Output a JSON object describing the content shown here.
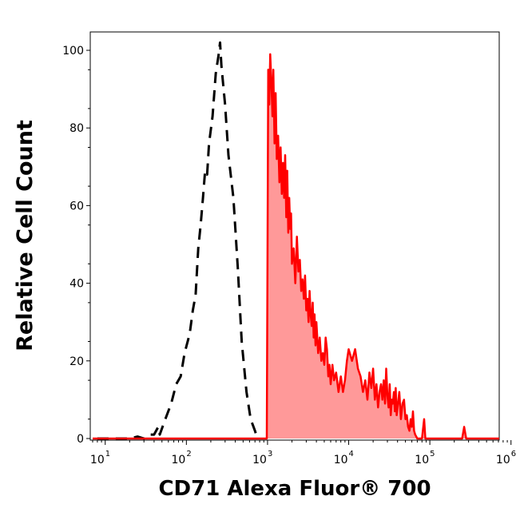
{
  "chart_data": {
    "type": "area",
    "xlabel": "CD71 Alexa Fluor® 700",
    "ylabel": "Relative Cell Count",
    "x_scale": "log",
    "xlim": [
      7,
      1200000
    ],
    "ylim": [
      0,
      105
    ],
    "x_ticks": [
      {
        "value": 10,
        "base": "10",
        "exp": "1"
      },
      {
        "value": 100,
        "base": "10",
        "exp": "2"
      },
      {
        "value": 1000,
        "base": "10",
        "exp": "3"
      },
      {
        "value": 10000,
        "base": "10",
        "exp": "4"
      },
      {
        "value": 100000,
        "base": "10",
        "exp": "5"
      },
      {
        "value": 1000000,
        "base": "10",
        "exp": "6"
      }
    ],
    "y_ticks": [
      0,
      20,
      40,
      60,
      80,
      100
    ],
    "y_tick_labels": [
      "0",
      "20",
      "40",
      "60",
      "80",
      "100"
    ],
    "series": [
      {
        "style": "dashed",
        "color": "#000000",
        "fill": "none",
        "points": [
          [
            8,
            0
          ],
          [
            15,
            0
          ],
          [
            20,
            0
          ],
          [
            25,
            0.5
          ],
          [
            30,
            0
          ],
          [
            35,
            1
          ],
          [
            40,
            1
          ],
          [
            45,
            3
          ],
          [
            47,
            1
          ],
          [
            55,
            5
          ],
          [
            65,
            9
          ],
          [
            75,
            14
          ],
          [
            85,
            16
          ],
          [
            95,
            22
          ],
          [
            110,
            27
          ],
          [
            120,
            33
          ],
          [
            130,
            37
          ],
          [
            140,
            49
          ],
          [
            150,
            55
          ],
          [
            160,
            62
          ],
          [
            170,
            69
          ],
          [
            180,
            68
          ],
          [
            190,
            76
          ],
          [
            210,
            83
          ],
          [
            230,
            94
          ],
          [
            250,
            99
          ],
          [
            260,
            102
          ],
          [
            270,
            96
          ],
          [
            300,
            86
          ],
          [
            330,
            73
          ],
          [
            380,
            62
          ],
          [
            430,
            44
          ],
          [
            480,
            25
          ],
          [
            550,
            12
          ],
          [
            620,
            5
          ],
          [
            700,
            2
          ],
          [
            750,
            0
          ]
        ]
      },
      {
        "style": "solid",
        "color": "#ff0000",
        "fill": "#ff9999",
        "points": [
          [
            7,
            0
          ],
          [
            980,
            0
          ],
          [
            1000,
            46
          ],
          [
            1020,
            95
          ],
          [
            1050,
            86
          ],
          [
            1080,
            99
          ],
          [
            1120,
            91
          ],
          [
            1150,
            83
          ],
          [
            1180,
            95
          ],
          [
            1220,
            76
          ],
          [
            1260,
            89
          ],
          [
            1300,
            72
          ],
          [
            1350,
            78
          ],
          [
            1400,
            66
          ],
          [
            1450,
            75
          ],
          [
            1500,
            63
          ],
          [
            1550,
            71
          ],
          [
            1600,
            62
          ],
          [
            1650,
            73
          ],
          [
            1700,
            57
          ],
          [
            1750,
            69
          ],
          [
            1800,
            53
          ],
          [
            1850,
            62
          ],
          [
            1900,
            54
          ],
          [
            1950,
            58
          ],
          [
            2000,
            45
          ],
          [
            2100,
            49
          ],
          [
            2200,
            40
          ],
          [
            2300,
            52
          ],
          [
            2400,
            43
          ],
          [
            2500,
            46
          ],
          [
            2600,
            38
          ],
          [
            2700,
            41
          ],
          [
            2800,
            36
          ],
          [
            2900,
            42
          ],
          [
            3000,
            33
          ],
          [
            3100,
            36
          ],
          [
            3200,
            30
          ],
          [
            3300,
            38
          ],
          [
            3400,
            32
          ],
          [
            3500,
            29
          ],
          [
            3600,
            35
          ],
          [
            3700,
            26
          ],
          [
            3800,
            32
          ],
          [
            3900,
            24
          ],
          [
            4000,
            30
          ],
          [
            4200,
            22
          ],
          [
            4400,
            26
          ],
          [
            4600,
            20
          ],
          [
            4800,
            22
          ],
          [
            5000,
            19
          ],
          [
            5200,
            26
          ],
          [
            5400,
            23
          ],
          [
            5600,
            16
          ],
          [
            5800,
            19
          ],
          [
            6000,
            14
          ],
          [
            6300,
            19
          ],
          [
            6600,
            15
          ],
          [
            7000,
            17
          ],
          [
            7500,
            12
          ],
          [
            8000,
            16
          ],
          [
            8500,
            12
          ],
          [
            9000,
            15
          ],
          [
            9500,
            20
          ],
          [
            10000,
            23
          ],
          [
            11000,
            20
          ],
          [
            12000,
            23
          ],
          [
            13000,
            18
          ],
          [
            14000,
            16
          ],
          [
            15000,
            12
          ],
          [
            16000,
            15
          ],
          [
            17000,
            10
          ],
          [
            18000,
            17
          ],
          [
            19000,
            13
          ],
          [
            20000,
            18
          ],
          [
            21000,
            10
          ],
          [
            22000,
            14
          ],
          [
            23000,
            8
          ],
          [
            24000,
            12
          ],
          [
            25000,
            14
          ],
          [
            26000,
            10
          ],
          [
            27000,
            15
          ],
          [
            28000,
            9
          ],
          [
            29000,
            18
          ],
          [
            30000,
            11
          ],
          [
            31000,
            8
          ],
          [
            32000,
            14
          ],
          [
            33000,
            6
          ],
          [
            34000,
            10
          ],
          [
            35000,
            9
          ],
          [
            36000,
            12
          ],
          [
            37000,
            7
          ],
          [
            38000,
            13
          ],
          [
            39000,
            6
          ],
          [
            40000,
            8
          ],
          [
            42000,
            12
          ],
          [
            44000,
            5
          ],
          [
            46000,
            9
          ],
          [
            48000,
            10
          ],
          [
            50000,
            5
          ],
          [
            52000,
            6
          ],
          [
            54000,
            3
          ],
          [
            56000,
            2
          ],
          [
            58000,
            5
          ],
          [
            60000,
            3
          ],
          [
            62000,
            7
          ],
          [
            64000,
            2
          ],
          [
            66000,
            1
          ],
          [
            70000,
            0
          ],
          [
            80000,
            0
          ],
          [
            85000,
            5
          ],
          [
            88000,
            0
          ],
          [
            100000,
            0
          ],
          [
            250000,
            0
          ],
          [
            265000,
            3
          ],
          [
            280000,
            0
          ],
          [
            1000000,
            0
          ],
          [
            1200000,
            0
          ]
        ]
      }
    ]
  }
}
